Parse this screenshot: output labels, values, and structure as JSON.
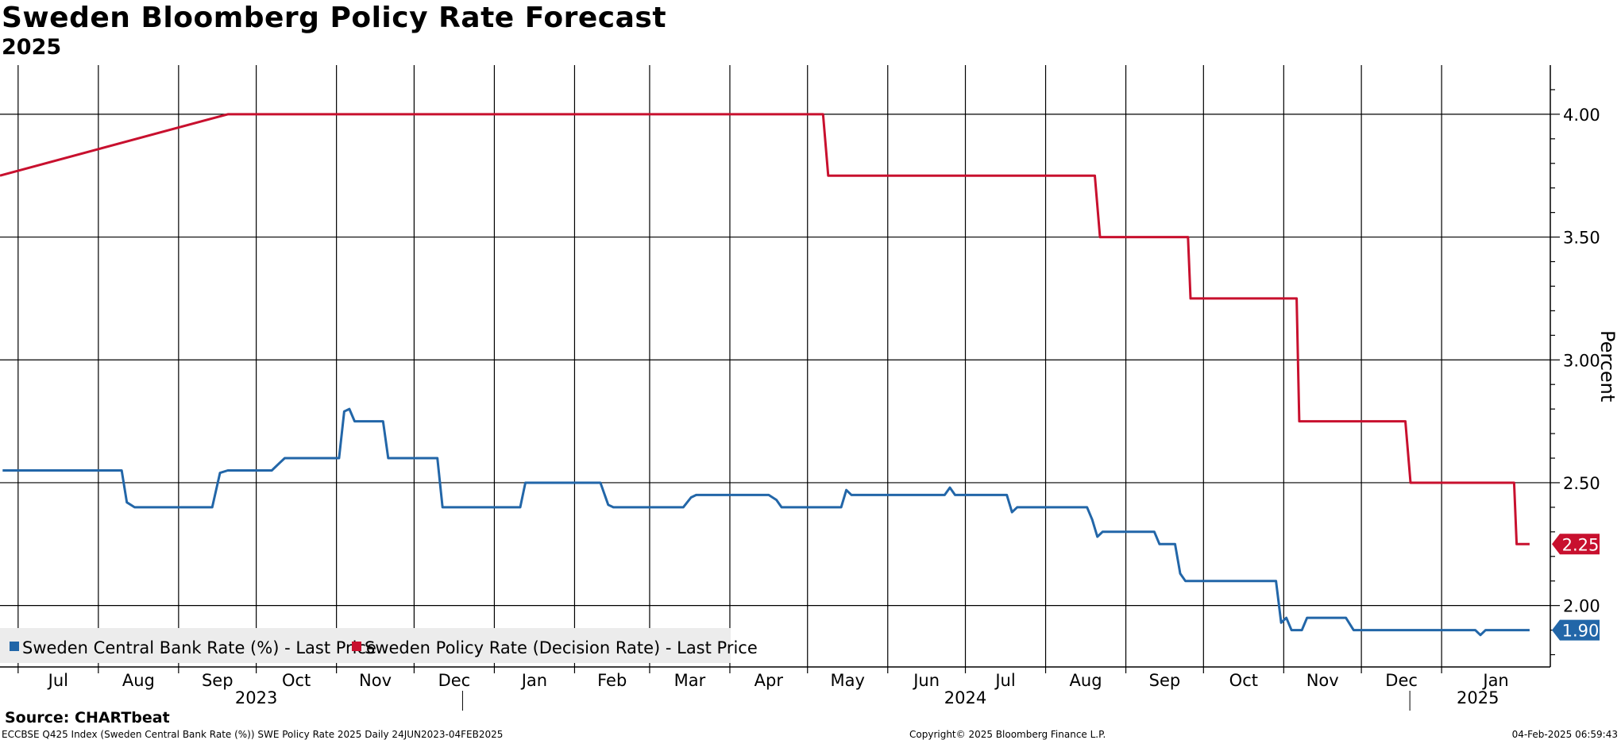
{
  "title": "Sweden Bloomberg Policy Rate Forecast",
  "subtitle": "2025",
  "source": "Source: CHARTbeat",
  "footer": {
    "left": "ECCBSE Q425 Index (Sweden Central Bank Rate (%)) SWE Policy Rate 2025  Daily 24JUN2023-04FEB2025",
    "center": "Copyright© 2025 Bloomberg Finance L.P.",
    "right": "04-Feb-2025 06:59:43"
  },
  "chart_data": {
    "type": "line",
    "title": "Sweden Bloomberg Policy Rate Forecast",
    "subtitle": "2025",
    "ylabel": "Percent",
    "ylim": [
      1.75,
      4.2
    ],
    "yticks": [
      "4.00",
      "3.50",
      "3.00",
      "2.50",
      "2.00"
    ],
    "ytick_values": [
      4.0,
      3.5,
      3.0,
      2.5,
      2.0
    ],
    "x_start": "2023-06-24",
    "x_end": "2025-02-12",
    "months": [
      {
        "label": "Jul",
        "date": "2023-07-01"
      },
      {
        "label": "Aug",
        "date": "2023-08-01"
      },
      {
        "label": "Sep",
        "date": "2023-09-01"
      },
      {
        "label": "Oct",
        "date": "2023-10-01"
      },
      {
        "label": "Nov",
        "date": "2023-11-01"
      },
      {
        "label": "Dec",
        "date": "2023-12-01"
      },
      {
        "label": "Jan",
        "date": "2024-01-01"
      },
      {
        "label": "Feb",
        "date": "2024-02-01"
      },
      {
        "label": "Mar",
        "date": "2024-03-01"
      },
      {
        "label": "Apr",
        "date": "2024-04-01"
      },
      {
        "label": "May",
        "date": "2024-05-01"
      },
      {
        "label": "Jun",
        "date": "2024-06-01"
      },
      {
        "label": "Jul",
        "date": "2024-07-01"
      },
      {
        "label": "Aug",
        "date": "2024-08-01"
      },
      {
        "label": "Sep",
        "date": "2024-09-01"
      },
      {
        "label": "Oct",
        "date": "2024-10-01"
      },
      {
        "label": "Nov",
        "date": "2024-11-01"
      },
      {
        "label": "Dec",
        "date": "2024-12-01"
      },
      {
        "label": "Jan",
        "date": "2025-01-01"
      }
    ],
    "years": [
      {
        "label": "2023",
        "date": "2023-10-01"
      },
      {
        "label": "2024",
        "date": "2024-07-01"
      },
      {
        "label": "2025",
        "date": "2025-01-15"
      }
    ],
    "year_dividers": [
      "2024-01-01",
      "2025-01-01"
    ],
    "series": [
      {
        "name": "Sweden Central Bank Rate (%) - Last Price",
        "color": "#2266a8",
        "last_label": "1.90",
        "points": [
          [
            "2023-06-25",
            2.55
          ],
          [
            "2023-08-10",
            2.55
          ],
          [
            "2023-08-12",
            2.42
          ],
          [
            "2023-08-15",
            2.4
          ],
          [
            "2023-09-14",
            2.4
          ],
          [
            "2023-09-17",
            2.54
          ],
          [
            "2023-09-20",
            2.55
          ],
          [
            "2023-10-07",
            2.55
          ],
          [
            "2023-10-10",
            2.58
          ],
          [
            "2023-10-12",
            2.6
          ],
          [
            "2023-11-02",
            2.6
          ],
          [
            "2023-11-04",
            2.79
          ],
          [
            "2023-11-06",
            2.8
          ],
          [
            "2023-11-08",
            2.75
          ],
          [
            "2023-11-19",
            2.75
          ],
          [
            "2023-11-21",
            2.6
          ],
          [
            "2023-12-10",
            2.6
          ],
          [
            "2023-12-12",
            2.4
          ],
          [
            "2024-01-11",
            2.4
          ],
          [
            "2024-01-13",
            2.5
          ],
          [
            "2024-02-11",
            2.5
          ],
          [
            "2024-02-14",
            2.41
          ],
          [
            "2024-02-16",
            2.4
          ],
          [
            "2024-03-14",
            2.4
          ],
          [
            "2024-03-17",
            2.44
          ],
          [
            "2024-03-19",
            2.45
          ],
          [
            "2024-04-16",
            2.45
          ],
          [
            "2024-04-19",
            2.43
          ],
          [
            "2024-04-21",
            2.4
          ],
          [
            "2024-05-14",
            2.4
          ],
          [
            "2024-05-16",
            2.47
          ],
          [
            "2024-05-18",
            2.45
          ],
          [
            "2024-06-23",
            2.45
          ],
          [
            "2024-06-25",
            2.48
          ],
          [
            "2024-06-27",
            2.45
          ],
          [
            "2024-07-17",
            2.45
          ],
          [
            "2024-07-19",
            2.38
          ],
          [
            "2024-07-21",
            2.4
          ],
          [
            "2024-08-17",
            2.4
          ],
          [
            "2024-08-19",
            2.35
          ],
          [
            "2024-08-21",
            2.28
          ],
          [
            "2024-08-23",
            2.3
          ],
          [
            "2024-09-12",
            2.3
          ],
          [
            "2024-09-14",
            2.25
          ],
          [
            "2024-09-20",
            2.25
          ],
          [
            "2024-09-22",
            2.13
          ],
          [
            "2024-09-24",
            2.1
          ],
          [
            "2024-10-29",
            2.1
          ],
          [
            "2024-10-31",
            1.93
          ],
          [
            "2024-11-02",
            1.95
          ],
          [
            "2024-11-04",
            1.9
          ],
          [
            "2024-11-08",
            1.9
          ],
          [
            "2024-11-10",
            1.95
          ],
          [
            "2024-11-25",
            1.95
          ],
          [
            "2024-11-28",
            1.9
          ],
          [
            "2025-01-14",
            1.9
          ],
          [
            "2025-01-16",
            1.88
          ],
          [
            "2025-01-18",
            1.9
          ],
          [
            "2025-02-04",
            1.9
          ]
        ]
      },
      {
        "name": "Sweden Policy Rate (Decision Rate) - Last Price",
        "color": "#c8102e",
        "last_label": "2.25",
        "points": [
          [
            "2023-06-24",
            3.75
          ],
          [
            "2023-09-20",
            4.0
          ],
          [
            "2024-05-07",
            4.0
          ],
          [
            "2024-05-09",
            3.75
          ],
          [
            "2024-08-20",
            3.75
          ],
          [
            "2024-08-22",
            3.5
          ],
          [
            "2024-09-25",
            3.5
          ],
          [
            "2024-09-26",
            3.25
          ],
          [
            "2024-11-06",
            3.25
          ],
          [
            "2024-11-07",
            2.75
          ],
          [
            "2024-12-18",
            2.75
          ],
          [
            "2024-12-20",
            2.5
          ],
          [
            "2025-01-29",
            2.5
          ],
          [
            "2025-01-30",
            2.25
          ],
          [
            "2025-02-04",
            2.25
          ]
        ]
      }
    ],
    "legend_position": "bottom-left"
  }
}
